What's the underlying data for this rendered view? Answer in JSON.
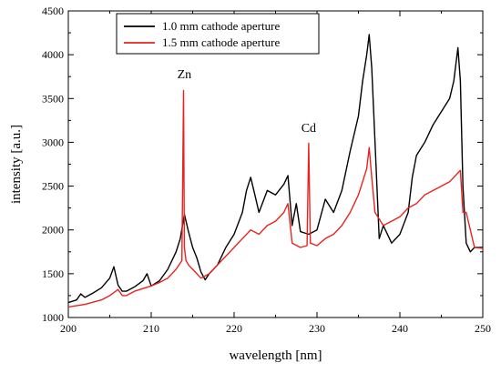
{
  "chart_data": {
    "type": "line",
    "title": "",
    "xlabel": "wavelength [nm]",
    "ylabel": "intensity [a.u.]",
    "xlim": [
      200,
      250
    ],
    "ylim": [
      1000,
      4500
    ],
    "xticks": [
      200,
      210,
      220,
      230,
      240,
      250
    ],
    "yticks": [
      1000,
      1500,
      2000,
      2500,
      3000,
      3500,
      4000,
      4500
    ],
    "grid": false,
    "legend": "top-left",
    "series": [
      {
        "name": "1.0 mm cathode aperture",
        "color": "#000000",
        "x": [
          200,
          201,
          201.5,
          202,
          203,
          204,
          205,
          205.5,
          206,
          206.5,
          207,
          208,
          209,
          209.5,
          210,
          211,
          212,
          213,
          213.5,
          214,
          214.5,
          215,
          215.5,
          216,
          216.5,
          217,
          218,
          219,
          220,
          221,
          221.5,
          222,
          222.5,
          223,
          224,
          225,
          226,
          226.5,
          227,
          227.5,
          228,
          229,
          230,
          231,
          232,
          233,
          234,
          235,
          235.5,
          236,
          236.3,
          236.6,
          237,
          237.5,
          238,
          239,
          240,
          241,
          241.5,
          242,
          243,
          244,
          245,
          246,
          246.5,
          247,
          247.3,
          247.6,
          248,
          248.5,
          249,
          250
        ],
        "values": [
          1170,
          1200,
          1270,
          1230,
          1280,
          1340,
          1450,
          1580,
          1370,
          1300,
          1300,
          1350,
          1420,
          1500,
          1360,
          1420,
          1550,
          1750,
          1900,
          2180,
          1980,
          1800,
          1680,
          1520,
          1430,
          1500,
          1600,
          1800,
          1950,
          2200,
          2450,
          2600,
          2400,
          2200,
          2450,
          2400,
          2520,
          2620,
          2050,
          2300,
          1980,
          1950,
          2000,
          2350,
          2200,
          2450,
          2900,
          3300,
          3700,
          4000,
          4230,
          3850,
          3000,
          1900,
          2050,
          1850,
          1950,
          2200,
          2600,
          2850,
          3000,
          3200,
          3350,
          3500,
          3700,
          4080,
          3700,
          2500,
          1850,
          1750,
          1800,
          1800
        ]
      },
      {
        "name": "1.5 mm cathode aperture",
        "color": "#e8231f",
        "x": [
          200,
          202,
          204,
          205,
          206,
          206.5,
          207,
          208,
          210,
          211,
          212,
          213,
          213.7,
          213.9,
          214.0,
          214.2,
          214.5,
          215,
          216,
          217,
          218,
          219,
          220,
          221,
          222,
          223,
          224,
          225,
          226,
          226.5,
          227,
          228,
          228.8,
          229.0,
          229.2,
          230,
          231,
          232,
          233,
          234,
          235,
          236,
          236.3,
          236.6,
          237,
          238,
          239,
          240,
          241,
          242,
          243,
          244,
          245,
          246,
          247,
          247.3,
          247.6,
          248,
          249,
          250
        ],
        "values": [
          1120,
          1150,
          1200,
          1250,
          1320,
          1250,
          1250,
          1300,
          1360,
          1400,
          1450,
          1550,
          1650,
          3590,
          1800,
          1650,
          1600,
          1550,
          1450,
          1500,
          1600,
          1700,
          1800,
          1900,
          2000,
          1950,
          2050,
          2100,
          2200,
          2300,
          1850,
          1800,
          1820,
          2990,
          1850,
          1820,
          1900,
          1950,
          2050,
          2200,
          2400,
          2700,
          2940,
          2600,
          2200,
          2050,
          2100,
          2150,
          2250,
          2300,
          2400,
          2450,
          2500,
          2550,
          2650,
          2680,
          2200,
          2200,
          1800,
          1790
        ]
      }
    ],
    "annotations": [
      {
        "text": "Zn",
        "x": 214.0,
        "y": 3730
      },
      {
        "text": "Cd",
        "x": 229.0,
        "y": 3120
      }
    ]
  }
}
